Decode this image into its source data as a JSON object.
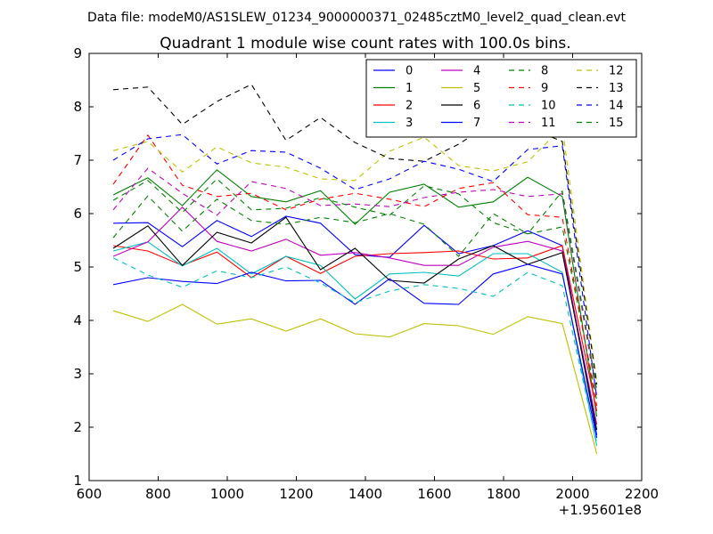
{
  "chart_data": {
    "type": "line",
    "suptitle": "Data file: modeM0/AS1SLEW_01234_9000000371_02485cztM0_level2_quad_clean.evt",
    "title": "Quadrant 1 module wise count rates with 100.0s bins.",
    "xlabel": "",
    "ylabel": "",
    "x_offset_label": "+1.95601e8",
    "xlim": [
      600,
      2200
    ],
    "ylim": [
      1,
      9
    ],
    "xticks": [
      600,
      800,
      1000,
      1200,
      1400,
      1600,
      1800,
      2000,
      2200
    ],
    "yticks": [
      1,
      2,
      3,
      4,
      5,
      6,
      7,
      8,
      9
    ],
    "grid": false,
    "legend_position": "top-right",
    "legend_columns": 4,
    "x": [
      670,
      770,
      870,
      970,
      1070,
      1170,
      1270,
      1370,
      1470,
      1570,
      1670,
      1770,
      1870,
      1970,
      2070
    ],
    "series": [
      {
        "name": "0",
        "color": "#0000ff",
        "dash": "solid",
        "values": [
          5.82,
          5.83,
          5.38,
          5.87,
          5.57,
          5.95,
          5.82,
          5.23,
          5.18,
          5.78,
          5.25,
          5.4,
          5.68,
          5.4,
          1.85
        ]
      },
      {
        "name": "1",
        "color": "#008000",
        "dash": "solid",
        "values": [
          6.35,
          6.67,
          6.15,
          6.82,
          6.32,
          6.22,
          6.43,
          5.8,
          6.4,
          6.55,
          6.12,
          6.22,
          6.68,
          6.32,
          2.2
        ]
      },
      {
        "name": "2",
        "color": "#ff0000",
        "dash": "solid",
        "values": [
          5.4,
          5.3,
          5.03,
          5.28,
          4.8,
          5.2,
          4.88,
          5.2,
          5.25,
          5.27,
          5.3,
          5.15,
          5.17,
          5.4,
          2.3
        ]
      },
      {
        "name": "3",
        "color": "#00bfbf",
        "dash": "solid",
        "values": [
          5.3,
          5.47,
          5.02,
          5.35,
          4.87,
          5.2,
          5.03,
          4.4,
          4.87,
          4.9,
          4.83,
          5.25,
          5.25,
          4.9,
          1.65
        ]
      },
      {
        "name": "4",
        "color": "#bf00bf",
        "dash": "solid",
        "values": [
          5.2,
          5.47,
          6.12,
          5.48,
          5.3,
          5.52,
          5.22,
          5.27,
          5.17,
          5.03,
          5.03,
          5.37,
          5.48,
          5.3,
          2.05
        ]
      },
      {
        "name": "5",
        "color": "#bfbf00",
        "dash": "solid",
        "values": [
          4.18,
          3.98,
          4.3,
          3.93,
          4.03,
          3.8,
          4.03,
          3.75,
          3.69,
          3.94,
          3.9,
          3.74,
          4.07,
          3.94,
          1.5
        ]
      },
      {
        "name": "6",
        "color": "#000000",
        "dash": "solid",
        "values": [
          5.35,
          5.77,
          5.03,
          5.65,
          5.45,
          5.93,
          4.95,
          5.35,
          4.75,
          4.7,
          5.15,
          5.4,
          5.05,
          5.27,
          1.95
        ]
      },
      {
        "name": "7",
        "color": "#0000ff",
        "dash": "solid",
        "values": [
          4.67,
          4.8,
          4.73,
          4.69,
          4.9,
          4.74,
          4.75,
          4.3,
          4.78,
          4.32,
          4.3,
          4.87,
          5.05,
          4.87,
          1.8
        ]
      },
      {
        "name": "8",
        "color": "#008000",
        "dash": "dashed",
        "values": [
          5.55,
          6.33,
          5.67,
          6.27,
          5.87,
          5.8,
          5.93,
          5.83,
          6.0,
          5.8,
          5.2,
          6.0,
          5.62,
          5.75,
          2.5
        ]
      },
      {
        "name": "9",
        "color": "#ff0000",
        "dash": "dashed",
        "values": [
          6.55,
          7.47,
          6.53,
          6.32,
          6.38,
          6.07,
          6.27,
          6.38,
          6.27,
          6.13,
          6.47,
          6.58,
          5.98,
          5.93,
          2.4
        ]
      },
      {
        "name": "10",
        "color": "#00bfbf",
        "dash": "dashed",
        "values": [
          5.17,
          4.85,
          4.62,
          4.93,
          4.8,
          5.0,
          4.7,
          4.33,
          4.55,
          4.67,
          4.6,
          4.45,
          4.9,
          4.65,
          1.7
        ]
      },
      {
        "name": "11",
        "color": "#bf00bf",
        "dash": "dashed",
        "values": [
          6.07,
          6.85,
          6.38,
          5.97,
          6.6,
          6.47,
          6.15,
          6.18,
          6.13,
          6.3,
          6.4,
          6.45,
          6.32,
          6.37,
          2.6
        ]
      },
      {
        "name": "12",
        "color": "#bfbf00",
        "dash": "dashed",
        "values": [
          7.18,
          7.35,
          6.78,
          7.25,
          6.95,
          6.87,
          6.65,
          6.62,
          7.17,
          7.43,
          6.9,
          6.8,
          6.97,
          7.62,
          2.85
        ]
      },
      {
        "name": "13",
        "color": "#000000",
        "dash": "dashed",
        "values": [
          8.32,
          8.37,
          7.67,
          8.1,
          8.42,
          7.37,
          7.8,
          7.33,
          7.03,
          6.98,
          7.3,
          7.72,
          7.62,
          7.35,
          2.8
        ]
      },
      {
        "name": "14",
        "color": "#0000ff",
        "dash": "dashed",
        "values": [
          7.0,
          7.4,
          7.48,
          6.93,
          7.18,
          7.15,
          6.85,
          6.45,
          6.65,
          6.98,
          6.83,
          6.6,
          7.2,
          7.27,
          2.55
        ]
      },
      {
        "name": "15",
        "color": "#008000",
        "dash": "dashed",
        "values": [
          6.25,
          6.62,
          6.02,
          6.65,
          6.07,
          6.1,
          6.3,
          6.12,
          5.97,
          6.52,
          6.37,
          5.83,
          5.62,
          6.42,
          2.7
        ]
      }
    ]
  }
}
